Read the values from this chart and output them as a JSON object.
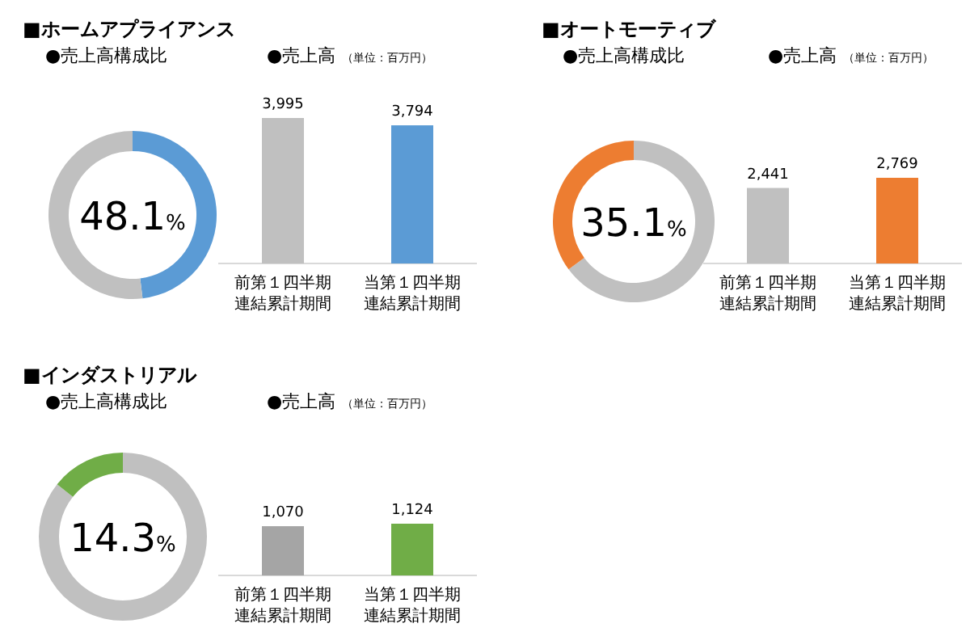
{
  "chart_data": [
    {
      "type": "donut",
      "title": "■ホームアプライアンス",
      "subtitle": "●売上高構成比",
      "categories": [
        null,
        null
      ],
      "values": [
        48.1,
        51.9
      ],
      "colors": [
        "#5b9bd5",
        "#c0c0c0"
      ],
      "annotations": [
        "48.1%"
      ]
    },
    {
      "type": "bar",
      "title": "●売上高",
      "subtitle": "（単位：百万円）",
      "categories": [
        "前第１四半期連結累計期間",
        "当第１四半期連結累計期間"
      ],
      "values": [
        3995,
        3794
      ],
      "colors": [
        "#c0c0c0",
        "#5b9bd5"
      ],
      "value_labels": [
        "3,995",
        "3,794"
      ]
    },
    {
      "type": "donut",
      "title": "■オートモーティブ",
      "subtitle": "●売上高構成比",
      "categories": [
        null,
        null
      ],
      "values": [
        64.9,
        35.1
      ],
      "colors": [
        "#c0c0c0",
        "#ed7d31"
      ],
      "annotations": [
        "35.1%"
      ]
    },
    {
      "type": "bar",
      "title": "●売上高",
      "subtitle": "（単位：百万円）",
      "categories": [
        "前第１四半期連結累計期間",
        "当第１四半期連結累計期間"
      ],
      "values": [
        2441,
        2769
      ],
      "colors": [
        "#c0c0c0",
        "#ed7d31"
      ],
      "value_labels": [
        "2,441",
        "2,769"
      ]
    },
    {
      "type": "donut",
      "title": "■インダストリアル",
      "subtitle": "●売上高構成比",
      "categories": [
        null,
        null
      ],
      "values": [
        85.7,
        14.3
      ],
      "colors": [
        "#c0c0c0",
        "#70ad47"
      ],
      "annotations": [
        "14.3%"
      ]
    },
    {
      "type": "bar",
      "title": "●売上高",
      "subtitle": "（単位：百万円）",
      "categories": [
        "前第１四半期連結累計期間",
        "当第１四半期連結累計期間"
      ],
      "values": [
        1070,
        1124
      ],
      "colors": [
        "#a5a5a5",
        "#70ad47"
      ],
      "value_labels": [
        "1,070",
        "1,124"
      ]
    }
  ]
}
